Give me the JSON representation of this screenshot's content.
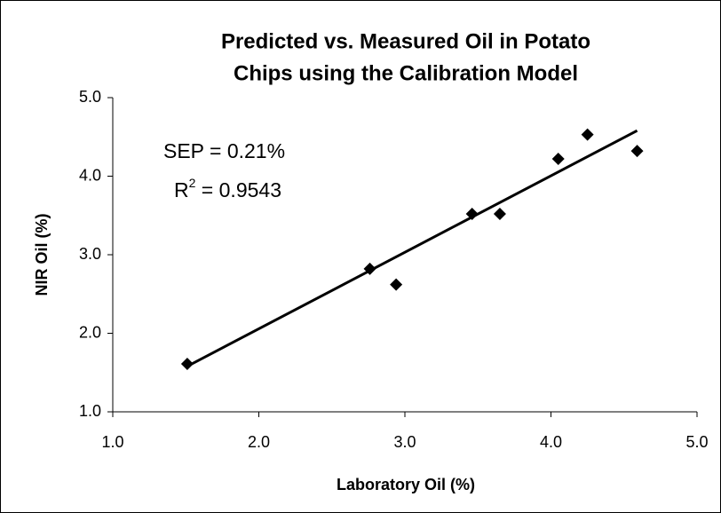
{
  "chart_data": {
    "type": "scatter",
    "title": [
      "Predicted vs. Measured Oil in Potato",
      "Chips using the Calibration Model"
    ],
    "x_label": "Laboratory Oil (%)",
    "y_label": "NIR Oil (%)",
    "annotations": [
      {
        "text": "SEP = 0.21%"
      },
      {
        "text": "R",
        "sup": "2",
        "rest": " = 0.9543"
      }
    ],
    "color": "#000000",
    "x": [
      1.51,
      2.76,
      2.94,
      3.46,
      3.65,
      4.05,
      4.25,
      4.59
    ],
    "values": [
      1.61,
      2.82,
      2.62,
      3.52,
      3.52,
      4.22,
      4.53,
      4.32
    ],
    "trendline": {
      "x": [
        1.51,
        4.59
      ],
      "values": [
        1.58,
        4.58
      ]
    },
    "xlim": [
      1,
      5
    ],
    "ylim": [
      1,
      5
    ],
    "xticks": [
      {
        "value": 1,
        "label": "1.0"
      },
      {
        "value": 2,
        "label": "2.0"
      },
      {
        "value": 3,
        "label": "3.0"
      },
      {
        "value": 4,
        "label": "4.0"
      },
      {
        "value": 5,
        "label": "5.0"
      }
    ],
    "yticks": [
      {
        "value": 1,
        "label": "1.0"
      },
      {
        "value": 2,
        "label": "2.0"
      },
      {
        "value": 3,
        "label": "3.0"
      },
      {
        "value": 4,
        "label": "4.0"
      },
      {
        "value": 5,
        "label": "5.0"
      }
    ],
    "grid": false
  }
}
